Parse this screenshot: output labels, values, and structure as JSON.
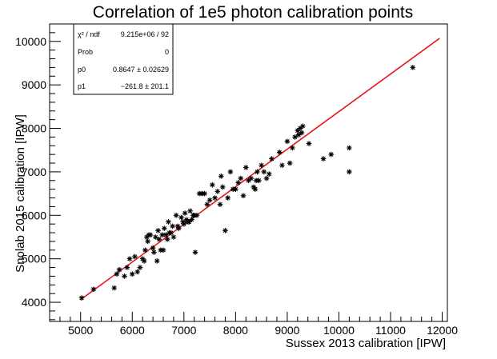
{
  "chart_data": {
    "type": "scatter",
    "title": "Correlation of 1e5 photon calibration points",
    "xlabel": "Sussex 2013 calibration [IPW]",
    "ylabel": "Snolab 2015 calibration [IPW]",
    "xlim": [
      4400,
      12100
    ],
    "ylim": [
      3560,
      10400
    ],
    "xticks": [
      5000,
      6000,
      7000,
      8000,
      9000,
      10000,
      11000,
      12000
    ],
    "xtick_labels": [
      "5000",
      "6000",
      "7000",
      "8000",
      "9000",
      "10000",
      "11000",
      "12000"
    ],
    "yticks": [
      4000,
      5000,
      6000,
      7000,
      8000,
      9000,
      10000
    ],
    "ytick_labels": [
      "4000",
      "5000",
      "6000",
      "7000",
      "8000",
      "9000",
      "10000"
    ],
    "grid": false,
    "marker": "asterisk",
    "marker_color": "#000000",
    "fit_color": "#e8141c",
    "fit": {
      "p0": 0.8647,
      "p1": -261.8
    },
    "x": [
      5020,
      5250,
      5650,
      5700,
      5750,
      5850,
      5900,
      5950,
      6000,
      6050,
      6100,
      6150,
      6200,
      6230,
      6250,
      6280,
      6300,
      6320,
      6350,
      6400,
      6420,
      6450,
      6480,
      6500,
      6520,
      6550,
      6580,
      6600,
      6620,
      6650,
      6680,
      6700,
      6720,
      6750,
      6780,
      6800,
      6850,
      6880,
      6900,
      6950,
      6980,
      7000,
      7020,
      7050,
      7080,
      7100,
      7120,
      7150,
      7180,
      7200,
      7220,
      7250,
      7300,
      7350,
      7400,
      7450,
      7500,
      7550,
      7600,
      7650,
      7700,
      7720,
      7750,
      7800,
      7850,
      7900,
      7950,
      8000,
      8050,
      8100,
      8150,
      8200,
      8250,
      8300,
      8350,
      8380,
      8400,
      8420,
      8450,
      8500,
      8550,
      8600,
      8650,
      8700,
      8850,
      8900,
      9000,
      9050,
      9100,
      9150,
      9200,
      9220,
      9250,
      9280,
      9300,
      9420,
      9700,
      9850,
      10200,
      10200,
      11430
    ],
    "y": [
      4100,
      4300,
      4330,
      4650,
      4750,
      4600,
      4800,
      5000,
      4650,
      5050,
      4700,
      4800,
      5000,
      4950,
      5200,
      5500,
      5400,
      5550,
      5550,
      5250,
      5150,
      5500,
      4950,
      5650,
      5450,
      5200,
      5550,
      5200,
      5700,
      5550,
      5450,
      5850,
      5600,
      5600,
      5750,
      5500,
      6000,
      5750,
      5700,
      5950,
      5850,
      5800,
      6050,
      5900,
      5850,
      5850,
      6100,
      5900,
      6000,
      6000,
      5150,
      6000,
      6500,
      6500,
      6500,
      6250,
      6350,
      6700,
      6400,
      6550,
      6250,
      6900,
      6650,
      5650,
      6400,
      7000,
      6600,
      6600,
      6750,
      6850,
      6450,
      7100,
      6800,
      6850,
      6650,
      6600,
      6800,
      7000,
      6800,
      7150,
      7000,
      6850,
      6950,
      7300,
      7450,
      7150,
      7700,
      7200,
      7550,
      7800,
      7950,
      7850,
      8000,
      7900,
      8050,
      7650,
      7300,
      7400,
      7550,
      7000,
      9400
    ]
  },
  "stats": {
    "rows": [
      {
        "label": "χ² / ndf",
        "value": "9.215e+06 / 92"
      },
      {
        "label": "Prob",
        "value": "0"
      },
      {
        "label": "p0",
        "value": "0.8647 ± 0.02629"
      },
      {
        "label": "p1",
        "value": "−261.8 ± 201.1"
      }
    ]
  }
}
